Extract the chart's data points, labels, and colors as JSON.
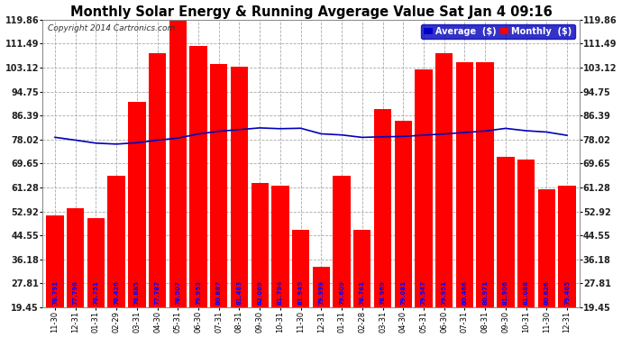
{
  "title": "Monthly Solar Energy & Running Avgerage Value Sat Jan 4 09:16",
  "copyright": "Copyright 2014 Cartronics.com",
  "categories": [
    "11-30",
    "12-31",
    "01-31",
    "02-29",
    "03-31",
    "04-30",
    "05-31",
    "06-30",
    "07-31",
    "08-31",
    "09-30",
    "10-31",
    "11-30",
    "12-31",
    "01-31",
    "02-28",
    "03-31",
    "04-30",
    "05-31",
    "06-30",
    "07-31",
    "08-31",
    "09-30",
    "10-31",
    "11-30",
    "12-31"
  ],
  "bar_values": [
    51.5,
    54.0,
    50.5,
    65.5,
    91.0,
    108.0,
    119.5,
    110.5,
    104.5,
    103.5,
    63.0,
    62.0,
    46.5,
    33.5,
    65.5,
    46.5,
    88.5,
    84.5,
    102.5,
    108.0,
    105.0,
    105.0,
    72.0,
    71.0,
    60.5,
    62.0
  ],
  "avg_values": [
    78.791,
    77.796,
    76.751,
    76.426,
    76.885,
    77.787,
    78.507,
    79.953,
    80.887,
    81.483,
    82.069,
    81.794,
    81.949,
    79.999,
    79.609,
    78.761,
    78.969,
    79.081,
    79.547,
    79.951,
    80.466,
    80.971,
    81.906,
    81.086,
    80.626,
    79.465
  ],
  "avg_labels": [
    "78.791",
    "77.796",
    "76.751",
    "76.426",
    "76.885",
    "77.787",
    "78.507",
    "79.953",
    "80.887",
    "81.483",
    "82.069",
    "81.794",
    "81.949",
    "79.999",
    "79.609",
    "78.761",
    "78.969",
    "79.081",
    "79.547",
    "79.951",
    "80.466",
    "80.971",
    "81.906",
    "81.086",
    "80.626",
    "79.465"
  ],
  "bar_color": "#ff0000",
  "avg_line_color": "#0000bb",
  "avg_text_color": "#0000ff",
  "bg_color": "#ffffff",
  "title_color": "#000000",
  "grid_color": "#aaaaaa",
  "yticks": [
    19.45,
    27.81,
    36.18,
    44.55,
    52.92,
    61.28,
    69.65,
    78.02,
    86.39,
    94.75,
    103.12,
    111.49,
    119.86
  ],
  "ylim_min": 19.45,
  "ylim_max": 119.86,
  "legend_avg_color": "#0000cc",
  "legend_monthly_color": "#ff0000",
  "title_fontsize": 10.5,
  "copyright_fontsize": 6.5,
  "label_fontsize": 5.0,
  "xtick_fontsize": 6.0,
  "ytick_fontsize": 7.0
}
